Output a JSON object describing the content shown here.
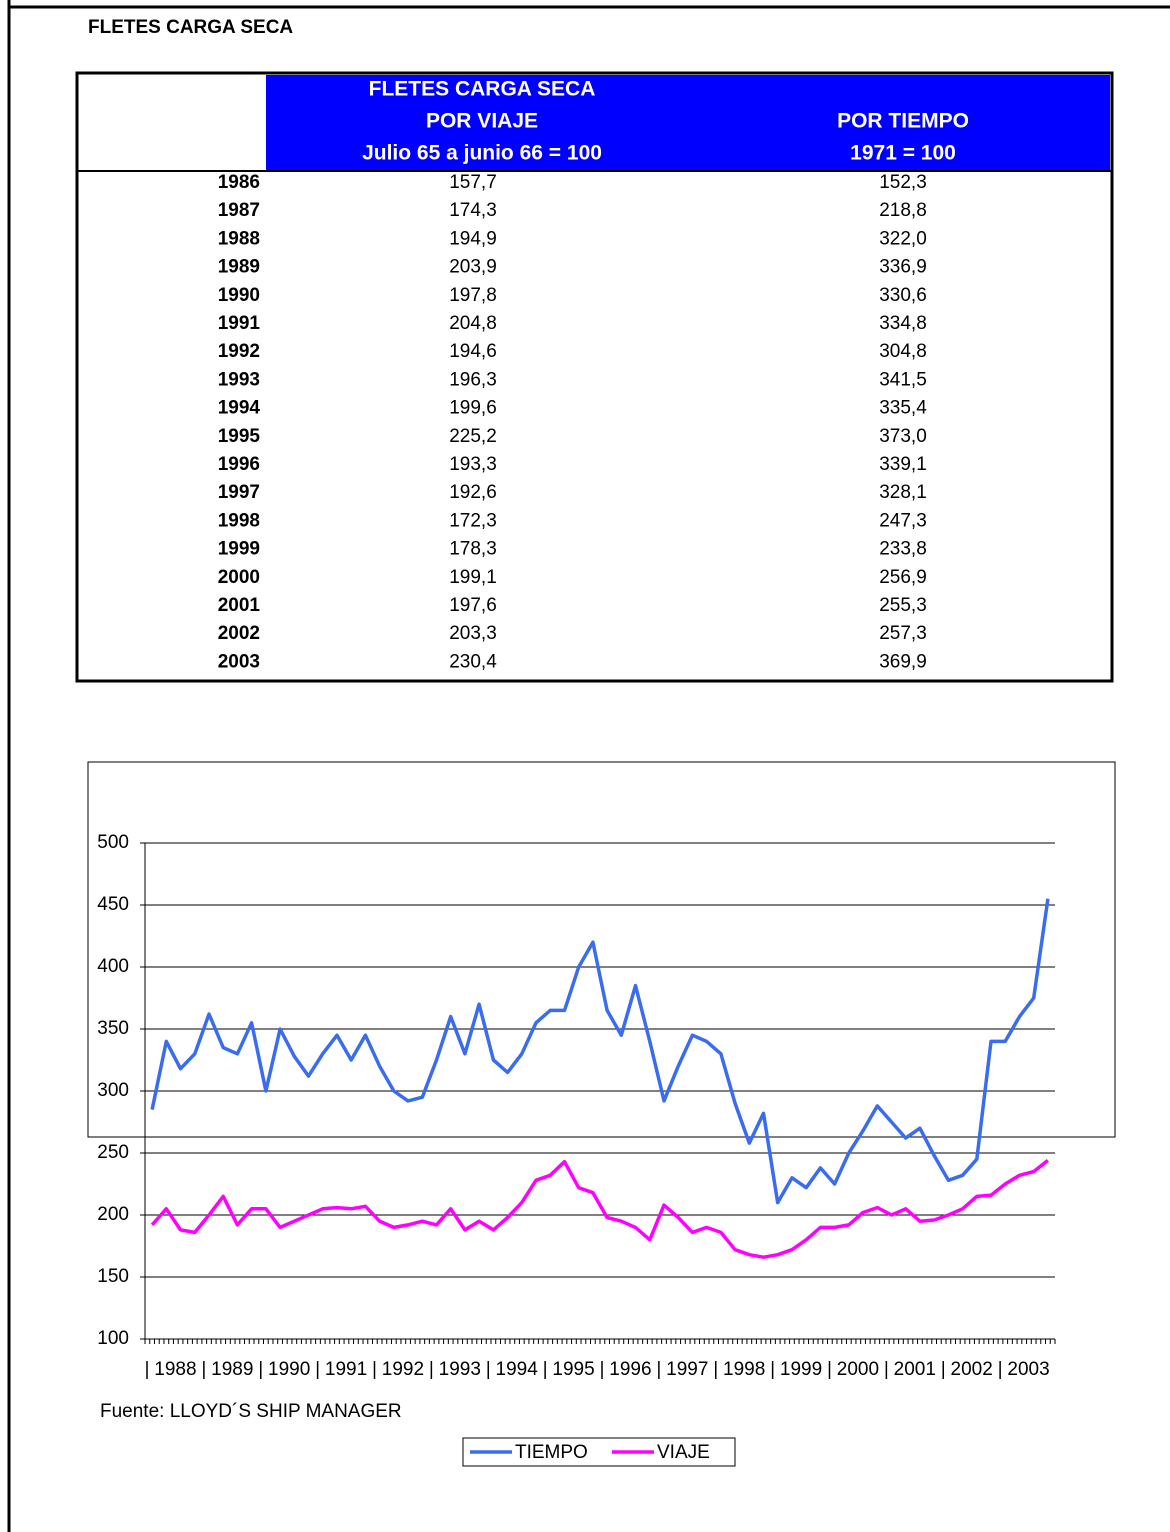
{
  "header": {
    "title": "FLETES CARGA SECA"
  },
  "table": {
    "header": [
      [
        "FLETES CARGA SECA",
        "POR VIAJE",
        "Julio 65 a junio 66 = 100"
      ],
      [
        "POR TIEMPO",
        "1971 = 100"
      ]
    ],
    "rows": [
      [
        "1986",
        "157,7",
        "152,3"
      ],
      [
        "1987",
        "174,3",
        "218,8"
      ],
      [
        "1988",
        "194,9",
        "322,0"
      ],
      [
        "1989",
        "203,9",
        "336,9"
      ],
      [
        "1990",
        "197,8",
        "330,6"
      ],
      [
        "1991",
        "204,8",
        "334,8"
      ],
      [
        "1992",
        "194,6",
        "304,8"
      ],
      [
        "1993",
        "196,3",
        "341,5"
      ],
      [
        "1994",
        "199,6",
        "335,4"
      ],
      [
        "1995",
        "225,2",
        "373,0"
      ],
      [
        "1996",
        "193,3",
        "339,1"
      ],
      [
        "1997",
        "192,6",
        "328,1"
      ],
      [
        "1998",
        "172,3",
        "247,3"
      ],
      [
        "1999",
        "178,3",
        "233,8"
      ],
      [
        "2000",
        "199,1",
        "256,9"
      ],
      [
        "2001",
        "197,6",
        "255,3"
      ],
      [
        "2002",
        "203,3",
        "257,3"
      ],
      [
        "2003",
        "230,4",
        "369,9"
      ]
    ]
  },
  "chart_data": {
    "type": "line",
    "categories": [
      "1988",
      null,
      null,
      null,
      "1989",
      null,
      null,
      null,
      "1990",
      null,
      null,
      null,
      "1991",
      null,
      null,
      null,
      "1992",
      null,
      null,
      null,
      "1993",
      null,
      null,
      null,
      "1994",
      null,
      null,
      null,
      "1995",
      null,
      null,
      null,
      "1996",
      null,
      null,
      null,
      "1997",
      null,
      null,
      null,
      "1998",
      null,
      null,
      null,
      "1999",
      null,
      null,
      null,
      "2000",
      null,
      null,
      null,
      "2001",
      null,
      null,
      null,
      "2002",
      null,
      null,
      null,
      "2003",
      null,
      null,
      null
    ],
    "series": [
      {
        "name": "TIEMPO",
        "color": "#3a6cf0",
        "values": [
          285,
          340,
          318,
          330,
          362,
          335,
          330,
          355,
          300,
          350,
          328,
          312,
          330,
          345,
          325,
          345,
          320,
          300,
          292,
          295,
          325,
          360,
          330,
          370,
          325,
          315,
          330,
          355,
          365,
          365,
          400,
          420,
          365,
          345,
          385,
          340,
          292,
          320,
          345,
          340,
          330,
          290,
          258,
          282,
          210,
          230,
          222,
          238,
          225,
          250,
          268,
          288,
          275,
          262,
          270,
          248,
          228,
          232,
          245,
          340,
          340,
          360,
          375,
          455
        ]
      },
      {
        "name": "VIAJE",
        "color": "#ff00ff",
        "values": [
          192,
          205,
          188,
          186,
          200,
          215,
          192,
          205,
          205,
          190,
          195,
          200,
          205,
          206,
          205,
          207,
          195,
          190,
          192,
          195,
          192,
          205,
          188,
          195,
          188,
          198,
          210,
          228,
          232,
          243,
          222,
          218,
          198,
          195,
          190,
          180,
          208,
          198,
          186,
          190,
          186,
          172,
          168,
          166,
          168,
          172,
          180,
          190,
          190,
          192,
          202,
          206,
          200,
          205,
          195,
          196,
          200,
          205,
          215,
          216,
          225,
          232,
          235,
          244
        ]
      }
    ],
    "ylim": [
      100,
      500
    ],
    "yticks": [
      100,
      150,
      200,
      250,
      300,
      350,
      400,
      450,
      500
    ],
    "grid": true,
    "source": "Fuente: LLOYD´S SHIP MANAGER"
  }
}
